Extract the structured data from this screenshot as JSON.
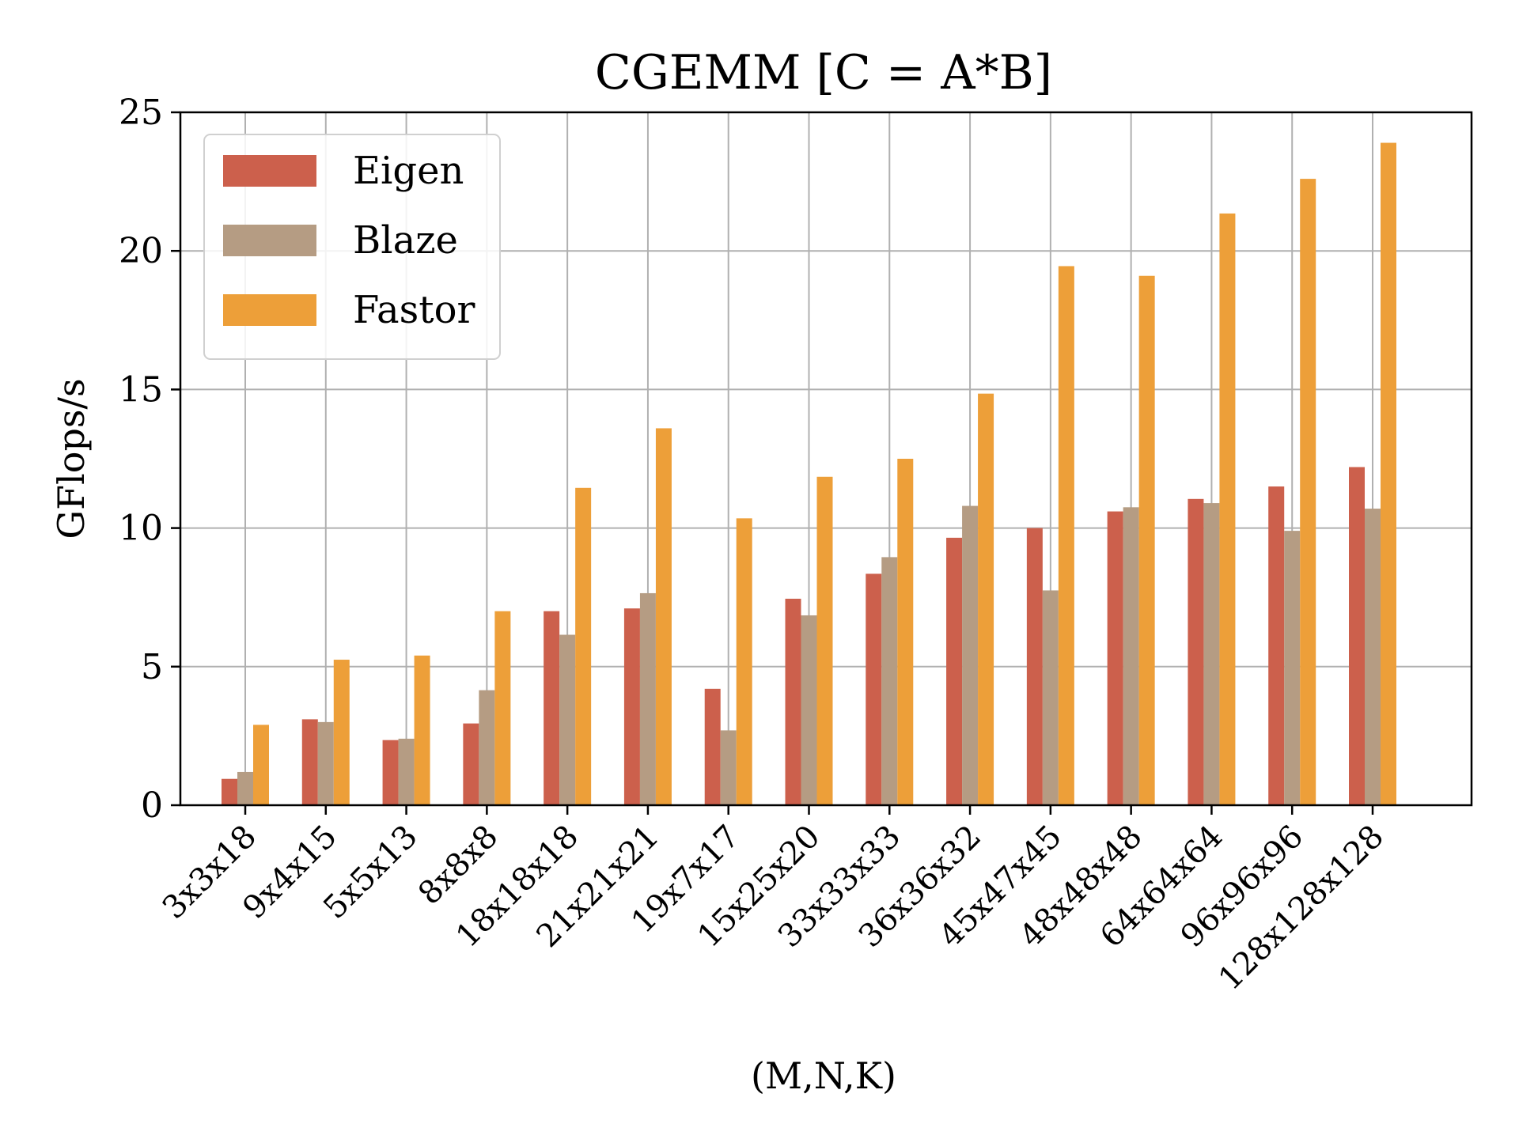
{
  "chart_data": {
    "type": "bar",
    "title": "CGEMM [C = A*B]",
    "xlabel": "(M,N,K)",
    "ylabel": "GFlops/s",
    "ylim": [
      0,
      25
    ],
    "yticks": [
      0,
      5,
      10,
      15,
      20,
      25
    ],
    "grid": true,
    "legend_position": "top-left",
    "categories": [
      "3x3x18",
      "9x4x15",
      "5x5x13",
      "8x8x8",
      "18x18x18",
      "21x21x21",
      "19x7x17",
      "15x25x20",
      "33x33x33",
      "36x36x32",
      "45x47x45",
      "48x48x48",
      "64x64x64",
      "96x96x96",
      "128x128x128"
    ],
    "series": [
      {
        "name": "Eigen",
        "color": "#cc604c",
        "values": [
          0.95,
          3.1,
          2.35,
          2.95,
          7.0,
          7.1,
          4.2,
          7.45,
          8.35,
          9.65,
          10.0,
          10.6,
          11.05,
          11.5,
          12.2
        ]
      },
      {
        "name": "Blaze",
        "color": "#b59c83",
        "values": [
          1.2,
          3.0,
          2.4,
          4.15,
          6.15,
          7.65,
          2.7,
          6.85,
          8.95,
          10.8,
          7.75,
          10.75,
          10.9,
          9.9,
          10.7
        ]
      },
      {
        "name": "Fastor",
        "color": "#ed9f39",
        "values": [
          2.9,
          5.25,
          5.4,
          7.0,
          11.45,
          13.6,
          10.35,
          11.85,
          12.5,
          14.85,
          19.45,
          19.1,
          21.35,
          22.6,
          23.9
        ]
      }
    ]
  }
}
